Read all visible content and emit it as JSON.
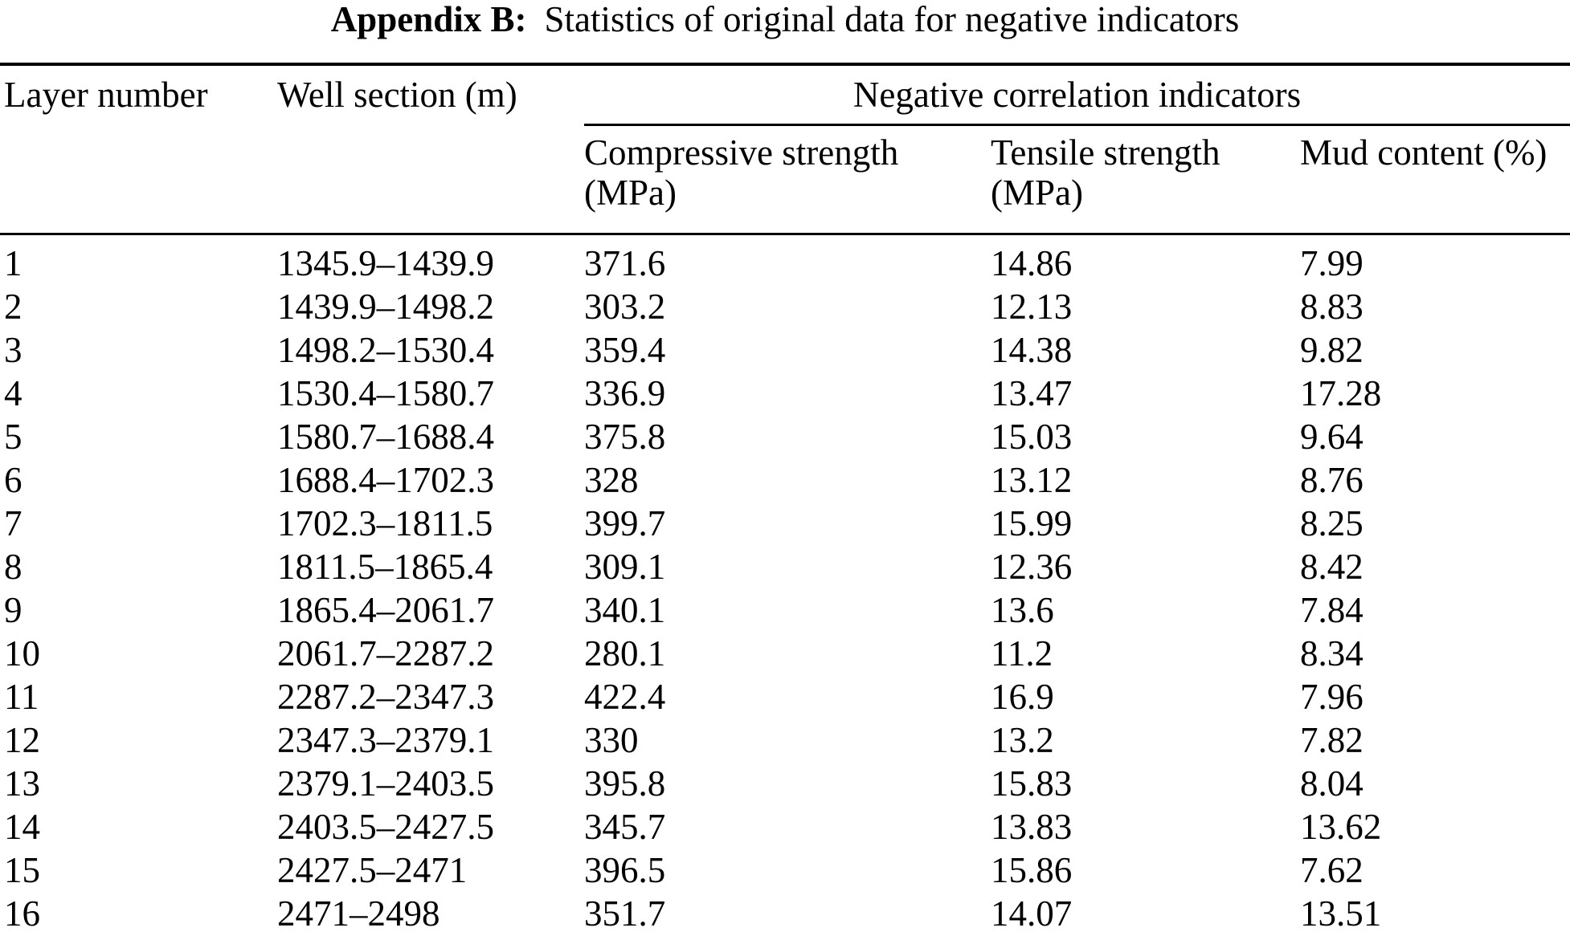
{
  "title": {
    "label": "Appendix B:",
    "text": "Statistics of original data for negative indicators"
  },
  "table": {
    "headers": {
      "layer": "Layer number",
      "well_section": "Well section (m)",
      "group": "Negative correlation indicators",
      "compressive_line1": "Compressive strength",
      "compressive_line2": "(MPa)",
      "tensile_line1": "Tensile strength",
      "tensile_line2": "(MPa)",
      "mud": "Mud content (%)"
    },
    "rows": [
      {
        "layer": "1",
        "well_section": "1345.9–1439.9",
        "compressive": "371.6",
        "tensile": "14.86",
        "mud": "7.99"
      },
      {
        "layer": "2",
        "well_section": "1439.9–1498.2",
        "compressive": "303.2",
        "tensile": "12.13",
        "mud": "8.83"
      },
      {
        "layer": "3",
        "well_section": "1498.2–1530.4",
        "compressive": "359.4",
        "tensile": "14.38",
        "mud": "9.82"
      },
      {
        "layer": "4",
        "well_section": "1530.4–1580.7",
        "compressive": "336.9",
        "tensile": "13.47",
        "mud": "17.28"
      },
      {
        "layer": "5",
        "well_section": "1580.7–1688.4",
        "compressive": "375.8",
        "tensile": "15.03",
        "mud": "9.64"
      },
      {
        "layer": "6",
        "well_section": "1688.4–1702.3",
        "compressive": "328",
        "tensile": "13.12",
        "mud": "8.76"
      },
      {
        "layer": "7",
        "well_section": "1702.3–1811.5",
        "compressive": "399.7",
        "tensile": "15.99",
        "mud": "8.25"
      },
      {
        "layer": "8",
        "well_section": "1811.5–1865.4",
        "compressive": "309.1",
        "tensile": "12.36",
        "mud": "8.42"
      },
      {
        "layer": "9",
        "well_section": "1865.4–2061.7",
        "compressive": "340.1",
        "tensile": "13.6",
        "mud": "7.84"
      },
      {
        "layer": "10",
        "well_section": "2061.7–2287.2",
        "compressive": "280.1",
        "tensile": "11.2",
        "mud": "8.34"
      },
      {
        "layer": "11",
        "well_section": "2287.2–2347.3",
        "compressive": "422.4",
        "tensile": "16.9",
        "mud": "7.96"
      },
      {
        "layer": "12",
        "well_section": "2347.3–2379.1",
        "compressive": "330",
        "tensile": "13.2",
        "mud": "7.82"
      },
      {
        "layer": "13",
        "well_section": "2379.1–2403.5",
        "compressive": "395.8",
        "tensile": "15.83",
        "mud": "8.04"
      },
      {
        "layer": "14",
        "well_section": "2403.5–2427.5",
        "compressive": "345.7",
        "tensile": "13.83",
        "mud": "13.62"
      },
      {
        "layer": "15",
        "well_section": "2427.5–2471",
        "compressive": "396.5",
        "tensile": "15.86",
        "mud": "7.62"
      },
      {
        "layer": "16",
        "well_section": "2471–2498",
        "compressive": "351.7",
        "tensile": "14.07",
        "mud": "13.51"
      }
    ]
  }
}
